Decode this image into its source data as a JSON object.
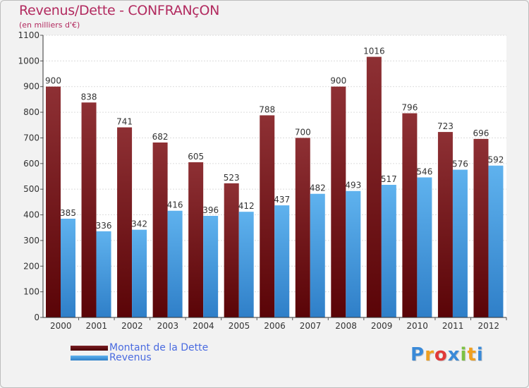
{
  "header": {
    "title": "Revenus/Dette - CONFRANçON",
    "subtitle": "(en milliers d'€)"
  },
  "colors": {
    "dette": "#7a1f24",
    "revenus": "#4f9fe0",
    "title": "#b22a5f",
    "legend_text": "#4a6be0"
  },
  "legend": {
    "items": [
      {
        "label": "Montant de la Dette",
        "color": "#5c0a0f"
      },
      {
        "label": "Revenus",
        "color": "#4f9fe0"
      }
    ]
  },
  "logo": {
    "letters": [
      "P",
      "r",
      "o",
      "x",
      "i",
      "t",
      "i"
    ],
    "colors": [
      "#3a8ad8",
      "#f0a020",
      "#e03a3a",
      "#3a8ad8",
      "#7cc242",
      "#f0a020",
      "#3a8ad8"
    ]
  },
  "chart_data": {
    "type": "bar",
    "categories": [
      "2000",
      "2001",
      "2002",
      "2003",
      "2004",
      "2005",
      "2006",
      "2007",
      "2008",
      "2009",
      "2010",
      "2011",
      "2012"
    ],
    "series": [
      {
        "name": "Montant de la Dette",
        "values": [
          900,
          838,
          741,
          682,
          605,
          523,
          788,
          700,
          900,
          1016,
          796,
          723,
          696
        ]
      },
      {
        "name": "Revenus",
        "values": [
          385,
          336,
          342,
          416,
          396,
          412,
          437,
          482,
          493,
          517,
          546,
          576,
          592
        ]
      }
    ],
    "title": "Revenus/Dette - CONFRANçON",
    "ylabel": "(en milliers d'€)",
    "ylim": [
      0,
      1100
    ],
    "yticks": [
      0,
      100,
      200,
      300,
      400,
      500,
      600,
      700,
      800,
      900,
      1000,
      1100
    ],
    "grid": true,
    "legend_position": "bottom-left"
  }
}
